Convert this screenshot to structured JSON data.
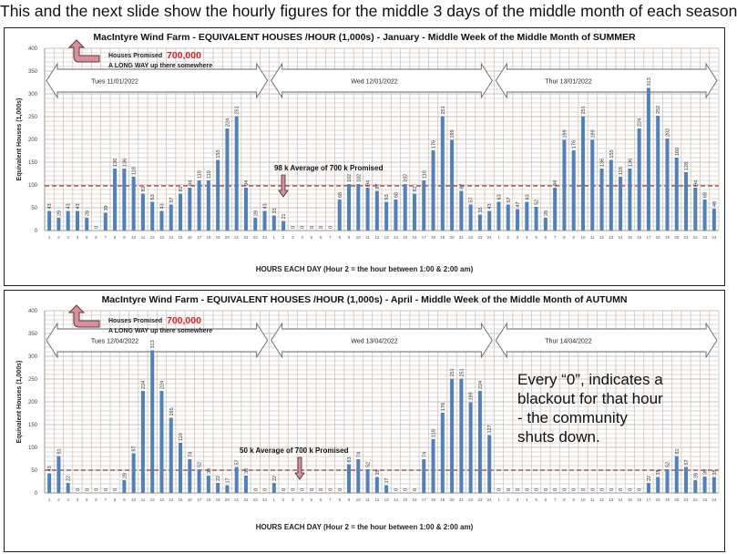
{
  "slide": {
    "title": "This and the next slide show the hourly figures for the middle 3 days of the middle month of each season",
    "note_lines": [
      "Every “0”, indicates a",
      "blackout for that hour",
      "- the community",
      "shuts down."
    ]
  },
  "colors": {
    "bar": "#4f81bd",
    "average_line": "#c0504d",
    "promised_value": "#e02020",
    "arrow_fill": "#d9909a"
  },
  "chart_data": [
    {
      "type": "bar",
      "title": "MacIntyre Wind Farm - EQUIVALENT HOUSES /HOUR (1,000s) - January - Middle Week of the Middle  Month of SUMMER",
      "xlabel": "HOURS EACH DAY (Hour 2 = the hour between 1:00 & 2:00 am)",
      "ylabel": "Equivalent Houses (1,000s)",
      "ylim": [
        0,
        400
      ],
      "yticks": [
        "0",
        "50",
        "100",
        "150",
        "200",
        "250",
        "300",
        "350",
        "400"
      ],
      "days": [
        "Tues  11/01/2022",
        "Wed  12/01/2022",
        "Thur  13/01/2022"
      ],
      "promised_label": "Houses Promised",
      "promised_value": "700,000",
      "promised_note": "A LONG WAY up there somewhere",
      "average_label": "98 k  Average of 700 k Promised",
      "average": 98,
      "values": [
        43,
        28,
        43,
        43,
        28,
        0,
        39,
        136,
        136,
        118,
        81,
        63,
        43,
        57,
        81,
        94,
        110,
        110,
        155,
        224,
        251,
        94,
        28,
        43,
        33,
        21,
        0,
        0,
        0,
        0,
        0,
        68,
        102,
        102,
        94,
        87,
        63,
        68,
        102,
        81,
        110,
        176,
        251,
        199,
        87,
        57,
        35,
        43,
        63,
        57,
        47,
        63,
        52,
        28,
        94,
        199,
        176,
        251,
        199,
        136,
        155,
        118,
        136,
        224,
        313,
        252,
        202,
        160,
        128,
        94,
        68,
        48
      ]
    },
    {
      "type": "bar",
      "title": "MacIntyre Wind Farm - EQUIVALENT HOUSES /HOUR (1,000s) - April - Middle Week of the Middle  Month of AUTUMN",
      "xlabel": "HOURS EACH DAY (Hour 2 = the hour between 1:00 & 2:00 am)",
      "ylabel": "Equivalent Houses (1,000s)",
      "ylim": [
        0,
        400
      ],
      "yticks": [
        "0",
        "50",
        "100",
        "150",
        "200",
        "250",
        "300",
        "350",
        "400"
      ],
      "days": [
        "Tues  12/04/2022",
        "Wed  13/04/2022",
        "Thur  14/04/2022"
      ],
      "promised_label": "Houses Promised",
      "promised_value": "700,000",
      "promised_note": "A LONG WAY up there somewhere",
      "average_label": "50 k  Average of 700 k Promised",
      "average": 50,
      "values": [
        43,
        81,
        22,
        0,
        0,
        0,
        0,
        0,
        28,
        87,
        224,
        313,
        224,
        165,
        110,
        74,
        52,
        38,
        22,
        17,
        57,
        38,
        0,
        0,
        22,
        0,
        0,
        0,
        0,
        0,
        0,
        0,
        63,
        74,
        52,
        35,
        17,
        0,
        0,
        0,
        74,
        118,
        176,
        251,
        251,
        199,
        224,
        127,
        0,
        0,
        0,
        0,
        0,
        0,
        0,
        0,
        0,
        0,
        0,
        0,
        0,
        0,
        0,
        0,
        22,
        35,
        52,
        81,
        57,
        28,
        36,
        35
      ]
    }
  ]
}
